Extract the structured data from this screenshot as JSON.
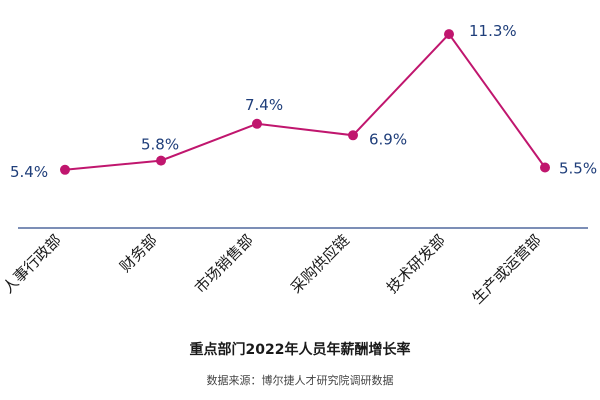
{
  "chart_data": {
    "type": "line",
    "categories": [
      "人事行政部",
      "财务部",
      "市场销售部",
      "采购供应链",
      "技术研发部",
      "生产或运营部"
    ],
    "values": [
      5.4,
      5.8,
      7.4,
      6.9,
      11.3,
      5.5
    ],
    "value_labels": [
      "5.4%",
      "5.8%",
      "7.4%",
      "6.9%",
      "11.3%",
      "5.5%"
    ],
    "ylim": [
      3.0,
      12.0
    ],
    "grid": false,
    "legend": "none",
    "title": "重点部门2022年人员年薪酬增长率",
    "source": "数据来源：博尔捷人才研究院调研数据",
    "colors": {
      "line": "#c0166e",
      "marker": "#c0166e",
      "value_label": "#1f3e7a",
      "axis": "#2f4a8a",
      "category_label": "#1a1a1a"
    }
  }
}
